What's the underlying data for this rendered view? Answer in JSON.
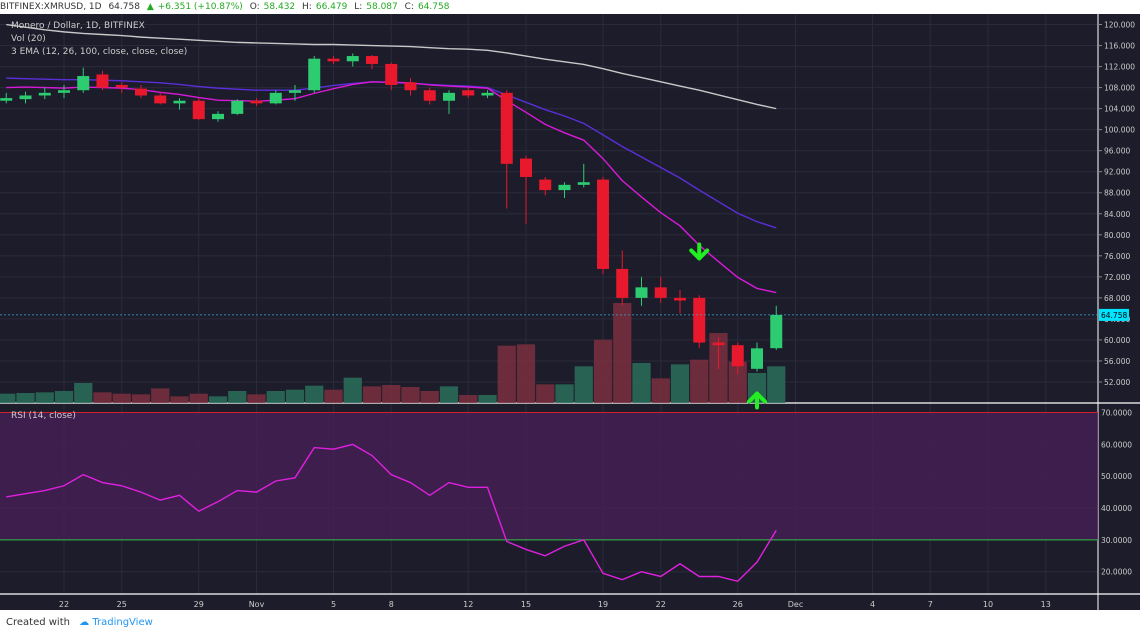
{
  "header": {
    "symbol": "BITFINEX:XMRUSD, 1D",
    "last": "64.758",
    "arrow": "▲",
    "change": "+6.351 (+10.87%)",
    "o_label": "O:",
    "o": "58.432",
    "h_label": "H:",
    "h": "66.479",
    "l_label": "L:",
    "l": "58.087",
    "c_label": "C:",
    "c": "64.758"
  },
  "legend": {
    "title": "Monero / Dollar, 1D, BITFINEX",
    "vol": "Vol (20)",
    "ema": "3 EMA (12, 26, 100, close, close, close)",
    "rsi": "RSI (14, close)"
  },
  "footer": {
    "created_with": "Created with",
    "brand": "TradingView"
  },
  "colors": {
    "background": "#1c1c2a",
    "up": "#2ecc71",
    "down": "#e8192c",
    "ema_fast": "#d81ad8",
    "ema_mid": "#5a2fd8",
    "ema_slow": "#c8c8c8",
    "rsi_line": "#e020e0",
    "rsi_band": "#4a1f5a",
    "arrow": "#22ee22"
  },
  "chart_data": [
    {
      "type": "candlestick",
      "title": "Monero / Dollar, 1D, BITFINEX",
      "ylim": [
        48,
        122
      ],
      "y_ticks": [
        "120.000",
        "116.000",
        "112.000",
        "108.000",
        "104.000",
        "100.000",
        "96.000",
        "92.000",
        "88.000",
        "84.000",
        "80.000",
        "76.000",
        "72.000",
        "68.000",
        "64.000",
        "60.000",
        "56.000",
        "52.000"
      ],
      "last_price_label": "64.758",
      "last_price": 64.758,
      "x_tick_labels": [
        "22",
        "25",
        "29",
        "Nov",
        "5",
        "8",
        "12",
        "15",
        "19",
        "22",
        "26",
        "Dec",
        "4",
        "7",
        "10",
        "13"
      ],
      "x_tick_days": [
        0,
        3,
        7,
        10,
        14,
        17,
        21,
        24,
        28,
        31,
        35,
        38,
        42,
        45,
        48,
        51
      ],
      "first_day_offset": -3,
      "candles": [
        {
          "o": 105.5,
          "h": 107.0,
          "l": 105.0,
          "c": 106.0
        },
        {
          "o": 105.8,
          "h": 107.2,
          "l": 105.0,
          "c": 106.5
        },
        {
          "o": 106.5,
          "h": 108.0,
          "l": 105.8,
          "c": 107.0
        },
        {
          "o": 107.0,
          "h": 108.5,
          "l": 106.0,
          "c": 107.5
        },
        {
          "o": 107.5,
          "h": 111.8,
          "l": 107.0,
          "c": 110.2
        },
        {
          "o": 110.5,
          "h": 111.2,
          "l": 107.5,
          "c": 108.0
        },
        {
          "o": 108.5,
          "h": 109.0,
          "l": 107.0,
          "c": 108.0
        },
        {
          "o": 107.8,
          "h": 108.5,
          "l": 106.0,
          "c": 106.5
        },
        {
          "o": 106.5,
          "h": 107.2,
          "l": 104.8,
          "c": 105.0
        },
        {
          "o": 105.0,
          "h": 106.0,
          "l": 103.8,
          "c": 105.5
        },
        {
          "o": 105.5,
          "h": 106.0,
          "l": 101.8,
          "c": 102.0
        },
        {
          "o": 102.0,
          "h": 103.5,
          "l": 101.5,
          "c": 103.0
        },
        {
          "o": 103.0,
          "h": 105.8,
          "l": 102.8,
          "c": 105.5
        },
        {
          "o": 105.5,
          "h": 106.0,
          "l": 104.5,
          "c": 105.0
        },
        {
          "o": 105.0,
          "h": 107.5,
          "l": 104.8,
          "c": 107.0
        },
        {
          "o": 107.0,
          "h": 108.5,
          "l": 105.5,
          "c": 107.5
        },
        {
          "o": 107.5,
          "h": 114.0,
          "l": 107.0,
          "c": 113.5
        },
        {
          "o": 113.5,
          "h": 114.0,
          "l": 112.5,
          "c": 113.0
        },
        {
          "o": 113.0,
          "h": 114.5,
          "l": 112.0,
          "c": 114.0
        },
        {
          "o": 114.0,
          "h": 114.2,
          "l": 111.5,
          "c": 112.5
        },
        {
          "o": 112.5,
          "h": 112.8,
          "l": 107.5,
          "c": 108.5
        },
        {
          "o": 109.0,
          "h": 109.8,
          "l": 106.5,
          "c": 107.5
        },
        {
          "o": 107.5,
          "h": 108.0,
          "l": 104.8,
          "c": 105.5
        },
        {
          "o": 105.5,
          "h": 107.5,
          "l": 103.0,
          "c": 107.0
        },
        {
          "o": 107.5,
          "h": 108.0,
          "l": 106.0,
          "c": 106.5
        },
        {
          "o": 106.5,
          "h": 107.5,
          "l": 106.0,
          "c": 107.0
        },
        {
          "o": 107.0,
          "h": 107.5,
          "l": 85.0,
          "c": 93.5
        },
        {
          "o": 94.5,
          "h": 95.0,
          "l": 82.0,
          "c": 91.0
        },
        {
          "o": 90.5,
          "h": 91.0,
          "l": 87.5,
          "c": 88.5
        },
        {
          "o": 88.5,
          "h": 90.0,
          "l": 87.0,
          "c": 89.5
        },
        {
          "o": 89.5,
          "h": 93.5,
          "l": 89.0,
          "c": 90.0
        },
        {
          "o": 90.5,
          "h": 91.0,
          "l": 72.5,
          "c": 73.5
        },
        {
          "o": 73.5,
          "h": 77.0,
          "l": 66.5,
          "c": 68.0
        },
        {
          "o": 68.0,
          "h": 72.0,
          "l": 66.5,
          "c": 70.0
        },
        {
          "o": 70.0,
          "h": 72.0,
          "l": 67.0,
          "c": 68.0
        },
        {
          "o": 68.0,
          "h": 69.5,
          "l": 65.0,
          "c": 67.5
        },
        {
          "o": 68.0,
          "h": 68.5,
          "l": 58.5,
          "c": 59.5
        },
        {
          "o": 59.5,
          "h": 60.5,
          "l": 54.5,
          "c": 59.0
        },
        {
          "o": 59.0,
          "h": 59.5,
          "l": 53.5,
          "c": 55.0
        },
        {
          "o": 54.5,
          "h": 59.5,
          "l": 54.0,
          "c": 58.4
        },
        {
          "o": 58.432,
          "h": 66.479,
          "l": 58.087,
          "c": 64.758
        }
      ],
      "volume": [
        {
          "v": 0.14,
          "up": true
        },
        {
          "v": 0.15,
          "up": true
        },
        {
          "v": 0.16,
          "up": true
        },
        {
          "v": 0.18,
          "up": true
        },
        {
          "v": 0.3,
          "up": true
        },
        {
          "v": 0.16,
          "up": false
        },
        {
          "v": 0.14,
          "up": false
        },
        {
          "v": 0.13,
          "up": false
        },
        {
          "v": 0.22,
          "up": false
        },
        {
          "v": 0.1,
          "up": false
        },
        {
          "v": 0.14,
          "up": false
        },
        {
          "v": 0.1,
          "up": true
        },
        {
          "v": 0.18,
          "up": true
        },
        {
          "v": 0.13,
          "up": false
        },
        {
          "v": 0.18,
          "up": true
        },
        {
          "v": 0.2,
          "up": true
        },
        {
          "v": 0.26,
          "up": true
        },
        {
          "v": 0.2,
          "up": false
        },
        {
          "v": 0.38,
          "up": true
        },
        {
          "v": 0.25,
          "up": false
        },
        {
          "v": 0.27,
          "up": false
        },
        {
          "v": 0.24,
          "up": false
        },
        {
          "v": 0.18,
          "up": false
        },
        {
          "v": 0.25,
          "up": true
        },
        {
          "v": 0.12,
          "up": false
        },
        {
          "v": 0.12,
          "up": true
        },
        {
          "v": 0.86,
          "up": false
        },
        {
          "v": 0.88,
          "up": false
        },
        {
          "v": 0.28,
          "up": false
        },
        {
          "v": 0.28,
          "up": true
        },
        {
          "v": 0.55,
          "up": true
        },
        {
          "v": 0.95,
          "up": false
        },
        {
          "v": 1.5,
          "up": false
        },
        {
          "v": 0.6,
          "up": true
        },
        {
          "v": 0.37,
          "up": false
        },
        {
          "v": 0.58,
          "up": true
        },
        {
          "v": 0.65,
          "up": false
        },
        {
          "v": 1.05,
          "up": false
        },
        {
          "v": 0.62,
          "up": false
        },
        {
          "v": 0.45,
          "up": true
        },
        {
          "v": 0.55,
          "up": true
        }
      ],
      "ema_fast": [
        108.0,
        108.1,
        108.0,
        107.9,
        108.1,
        108.0,
        107.9,
        107.6,
        107.1,
        106.7,
        106.1,
        105.6,
        105.5,
        105.4,
        105.6,
        105.9,
        106.9,
        107.8,
        108.6,
        109.1,
        109.0,
        108.9,
        108.5,
        108.3,
        108.1,
        107.9,
        105.5,
        103.3,
        101.0,
        99.4,
        98.0,
        94.5,
        90.3,
        87.2,
        84.2,
        81.7,
        78.0,
        74.9,
        71.9,
        69.8,
        69.0
      ],
      "ema_mid": [
        109.8,
        109.7,
        109.6,
        109.5,
        109.5,
        109.4,
        109.3,
        109.1,
        108.9,
        108.6,
        108.2,
        107.9,
        107.7,
        107.5,
        107.5,
        107.5,
        107.9,
        108.4,
        108.8,
        109.1,
        109.0,
        108.8,
        108.6,
        108.4,
        108.3,
        108.0,
        106.6,
        105.2,
        103.8,
        102.6,
        101.2,
        99.0,
        96.8,
        94.8,
        92.8,
        90.8,
        88.5,
        86.3,
        84.1,
        82.5,
        81.3
      ],
      "ema_slow": [
        120.0,
        119.5,
        119.0,
        118.6,
        118.3,
        118.1,
        117.9,
        117.6,
        117.4,
        117.2,
        117.0,
        116.8,
        116.6,
        116.5,
        116.4,
        116.3,
        116.2,
        116.2,
        116.1,
        116.0,
        115.9,
        115.8,
        115.6,
        115.4,
        115.3,
        115.1,
        114.6,
        114.0,
        113.4,
        112.9,
        112.4,
        111.6,
        110.7,
        109.9,
        109.1,
        108.3,
        107.5,
        106.6,
        105.7,
        104.8,
        104.0
      ],
      "annotations": [
        {
          "type": "arrow-down",
          "index": 36,
          "price": 75.5
        },
        {
          "type": "arrow-up",
          "index": 39,
          "price": 49.8
        }
      ]
    },
    {
      "type": "line",
      "title": "RSI (14, close)",
      "ylim": [
        13,
        73
      ],
      "y_ticks": [
        "70.0000",
        "60.0000",
        "50.0000",
        "40.0000",
        "30.0000",
        "20.0000"
      ],
      "band": [
        30,
        70
      ],
      "values": [
        43.5,
        44.5,
        45.5,
        47.0,
        50.5,
        48.0,
        47.0,
        45.0,
        42.5,
        44.0,
        39.0,
        42.0,
        45.5,
        45.0,
        48.5,
        49.5,
        59.0,
        58.5,
        60.0,
        56.5,
        50.5,
        48.0,
        44.0,
        48.0,
        46.5,
        46.5,
        29.5,
        27.0,
        25.0,
        28.0,
        30.0,
        19.5,
        17.5,
        20.0,
        18.5,
        22.5,
        18.5,
        18.5,
        17.0,
        23.0,
        33.0
      ]
    }
  ]
}
